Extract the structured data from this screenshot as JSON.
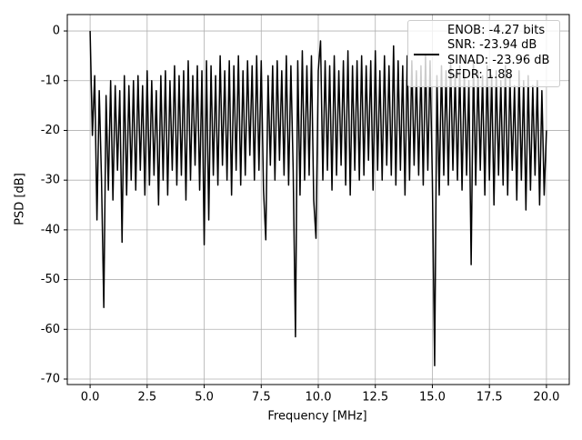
{
  "chart_data": {
    "type": "line",
    "xlabel": "Frequency [MHz]",
    "ylabel": "PSD [dB]",
    "xlim": [
      -1.0,
      21.0
    ],
    "ylim": [
      -71.1,
      3.3
    ],
    "xticks": [
      {
        "value": 0,
        "label": "0.0"
      },
      2.5,
      {
        "value": 5,
        "label": "5.0"
      },
      7.5,
      {
        "value": 10,
        "label": "10.0"
      },
      12.5,
      {
        "value": 15,
        "label": "15.0"
      },
      17.5,
      {
        "value": 20,
        "label": "20.0"
      }
    ],
    "yticks": [
      0,
      -10,
      -20,
      -30,
      -40,
      -50,
      -60,
      -70
    ],
    "grid": true,
    "legend": "upper right",
    "x": [
      0,
      0.1,
      0.2,
      0.3,
      0.4,
      0.5,
      0.6,
      0.7,
      0.8,
      0.9,
      1,
      1.1,
      1.2,
      1.3,
      1.4,
      1.5,
      1.6,
      1.7,
      1.8,
      1.9,
      2,
      2.1,
      2.2,
      2.3,
      2.4,
      2.5,
      2.6,
      2.7,
      2.8,
      2.9,
      3,
      3.1,
      3.2,
      3.3,
      3.4,
      3.5,
      3.6,
      3.7,
      3.8,
      3.9,
      4,
      4.1,
      4.2,
      4.3,
      4.4,
      4.5,
      4.6,
      4.7,
      4.8,
      4.9,
      5,
      5.1,
      5.2,
      5.3,
      5.4,
      5.5,
      5.6,
      5.7,
      5.8,
      5.9,
      6,
      6.1,
      6.2,
      6.3,
      6.4,
      6.5,
      6.6,
      6.7,
      6.8,
      6.9,
      7,
      7.1,
      7.2,
      7.3,
      7.4,
      7.5,
      7.6,
      7.7,
      7.8,
      7.9,
      8,
      8.1,
      8.2,
      8.3,
      8.4,
      8.5,
      8.6,
      8.7,
      8.8,
      8.9,
      9,
      9.1,
      9.2,
      9.3,
      9.4,
      9.5,
      9.6,
      9.7,
      9.8,
      9.9,
      10,
      10.1,
      10.2,
      10.3,
      10.4,
      10.5,
      10.6,
      10.7,
      10.8,
      10.9,
      11,
      11.1,
      11.2,
      11.3,
      11.4,
      11.5,
      11.6,
      11.7,
      11.8,
      11.9,
      12,
      12.1,
      12.2,
      12.3,
      12.4,
      12.5,
      12.6,
      12.7,
      12.8,
      12.9,
      13,
      13.1,
      13.2,
      13.3,
      13.4,
      13.5,
      13.6,
      13.7,
      13.8,
      13.9,
      14,
      14.1,
      14.2,
      14.3,
      14.4,
      14.5,
      14.6,
      14.7,
      14.8,
      14.9,
      15,
      15.1,
      15.2,
      15.3,
      15.4,
      15.5,
      15.6,
      15.7,
      15.8,
      15.9,
      16,
      16.1,
      16.2,
      16.3,
      16.4,
      16.5,
      16.6,
      16.7,
      16.8,
      16.9,
      17,
      17.1,
      17.2,
      17.3,
      17.4,
      17.5,
      17.6,
      17.7,
      17.8,
      17.9,
      18,
      18.1,
      18.2,
      18.3,
      18.4,
      18.5,
      18.6,
      18.7,
      18.8,
      18.9,
      19,
      19.1,
      19.2,
      19.3,
      19.4,
      19.5,
      19.6,
      19.7,
      19.8,
      19.9,
      20
    ],
    "series": [
      {
        "name": "ENOB: -4.27 bits\nSNR: -23.94 dB\nSINAD: -23.96 dB\nSFDR: 1.88",
        "color": "#000000",
        "values": [
          0,
          -21,
          -9,
          -38,
          -12,
          -30,
          -55.6,
          -13,
          -32,
          -10,
          -34,
          -11,
          -28,
          -12,
          -42.5,
          -9,
          -33,
          -11,
          -30,
          -10,
          -32,
          -9,
          -28,
          -11,
          -33,
          -8,
          -31,
          -10,
          -29,
          -12,
          -35,
          -9,
          -30,
          -8,
          -33,
          -10,
          -28,
          -7,
          -31,
          -9,
          -29,
          -8,
          -34,
          -6,
          -30,
          -9,
          -27,
          -7,
          -32,
          -8,
          -43,
          -6,
          -38,
          -7,
          -29,
          -9,
          -31,
          -5,
          -27,
          -8,
          -30,
          -6,
          -33,
          -7,
          -28,
          -5,
          -31,
          -8,
          -29,
          -6,
          -25,
          -7,
          -30,
          -5,
          -28,
          -6,
          -32,
          -42,
          -9,
          -27,
          -7,
          -30,
          -6,
          -26,
          -8,
          -29,
          -5,
          -31,
          -7,
          -28,
          -61.5,
          -6,
          -33,
          -4,
          -30,
          -7,
          -29,
          -5,
          -34,
          -41.7,
          -8,
          -2,
          -30,
          -6,
          -28,
          -7,
          -32,
          -5,
          -29,
          -8,
          -27,
          -6,
          -31,
          -4,
          -33,
          -7,
          -28,
          -6,
          -30,
          -5,
          -29,
          -7,
          -26,
          -6,
          -32,
          -4,
          -28,
          -8,
          -30,
          -5,
          -27,
          -7,
          -29,
          -3,
          -31,
          -6,
          -28,
          -7,
          -33,
          -5,
          -30,
          -6,
          -27,
          -8,
          -29,
          -7,
          -31,
          -5,
          -28,
          -6,
          -30,
          -67.3,
          -9,
          -33,
          -7,
          -29,
          -8,
          -31,
          -6,
          -28,
          -9,
          -30,
          -7,
          -32,
          -8,
          -29,
          -10,
          -47,
          -6,
          -31,
          -8,
          -28,
          -9,
          -33,
          -7,
          -30,
          -9,
          -35,
          -8,
          -29,
          -10,
          -31,
          -7,
          -33,
          -9,
          -28,
          -11,
          -34,
          -8,
          -30,
          -10,
          -36,
          -9,
          -32,
          -11,
          -29,
          -10,
          -35,
          -12,
          -33,
          -20
        ]
      }
    ]
  }
}
